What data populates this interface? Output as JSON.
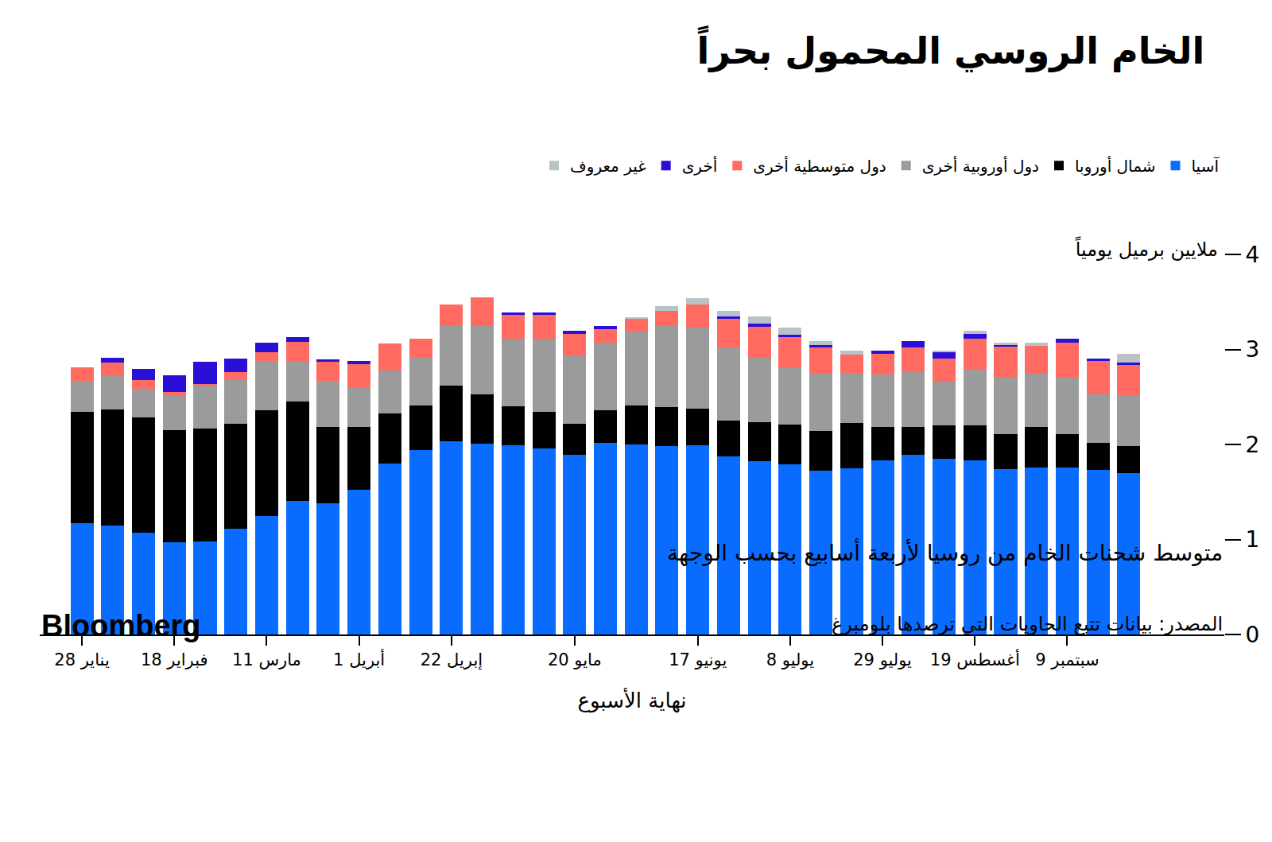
{
  "chart_data": {
    "type": "bar",
    "stacked": true,
    "title": "الخام الروسي المحمول بحراً",
    "subtitle": "متوسط شحنات الخام من روسيا لأربعة أسابيع بحسب الوجهة",
    "ylabel": "ملايين برميل يومياً",
    "xlabel": "نهاية الأسبوع",
    "source": "المصدر: بيانات تتبع الحاويات التي ترصدها بلومبرغ",
    "brand": "Bloomberg",
    "grid": false,
    "legend": "top",
    "ylim": [
      0,
      4
    ],
    "yticks": [
      0,
      1,
      2,
      3,
      4
    ],
    "categories": [
      "28 يناير",
      null,
      null,
      "18 فبراير",
      null,
      null,
      "11 مارس",
      null,
      null,
      "1 أبريل",
      null,
      null,
      "22 إبريل",
      null,
      null,
      null,
      "20 مايو",
      null,
      null,
      null,
      "17 يونيو",
      null,
      null,
      "8 يوليو",
      null,
      null,
      "29 يوليو",
      null,
      null,
      "19 أغسطس",
      null,
      null,
      "9 سبتمبر",
      null,
      null
    ],
    "series": [
      {
        "name": "آسيا",
        "color": "#0a6cff",
        "values": [
          1.17,
          1.15,
          1.075,
          0.97,
          0.98,
          1.11,
          1.25,
          1.41,
          1.38,
          1.525,
          1.8,
          1.94,
          2.03,
          2.01,
          1.99,
          1.96,
          1.89,
          2.02,
          2.0,
          1.98,
          1.99,
          1.875,
          1.825,
          1.79,
          1.72,
          1.75,
          1.83,
          1.89,
          1.85,
          1.83,
          1.74,
          1.76,
          1.76,
          1.73,
          1.7
        ]
      },
      {
        "name": "شمال أوروبا",
        "color": "#000000",
        "values": [
          1.17,
          1.22,
          1.21,
          1.18,
          1.19,
          1.11,
          1.11,
          1.04,
          0.8,
          0.66,
          0.525,
          0.47,
          0.59,
          0.515,
          0.41,
          0.38,
          0.33,
          0.34,
          0.41,
          0.41,
          0.385,
          0.375,
          0.41,
          0.42,
          0.425,
          0.48,
          0.35,
          0.29,
          0.35,
          0.375,
          0.365,
          0.425,
          0.35,
          0.29,
          0.28
        ]
      },
      {
        "name": "دول أوروبية أخرى",
        "color": "#9b9b9b",
        "values": [
          0.33,
          0.36,
          0.3,
          0.37,
          0.45,
          0.46,
          0.52,
          0.42,
          0.49,
          0.42,
          0.45,
          0.5,
          0.625,
          0.72,
          0.71,
          0.77,
          0.72,
          0.71,
          0.78,
          0.86,
          0.855,
          0.775,
          0.675,
          0.59,
          0.6,
          0.525,
          0.56,
          0.585,
          0.465,
          0.585,
          0.6,
          0.56,
          0.59,
          0.51,
          0.54
        ]
      },
      {
        "name": "دول متوسطية أخرى",
        "color": "#ff6b61",
        "values": [
          0.14,
          0.13,
          0.09,
          0.03,
          0.02,
          0.08,
          0.09,
          0.21,
          0.2,
          0.24,
          0.29,
          0.2,
          0.23,
          0.3,
          0.25,
          0.25,
          0.225,
          0.14,
          0.13,
          0.16,
          0.24,
          0.3,
          0.33,
          0.33,
          0.28,
          0.19,
          0.215,
          0.26,
          0.24,
          0.325,
          0.325,
          0.29,
          0.37,
          0.35,
          0.32
        ]
      },
      {
        "name": "أخرى",
        "color": "#2a0fd6",
        "values": [
          0,
          0.05,
          0.12,
          0.18,
          0.23,
          0.14,
          0.1,
          0.05,
          0.025,
          0.03,
          0,
          0,
          0,
          0,
          0.025,
          0.025,
          0.03,
          0.04,
          0,
          0,
          0,
          0.025,
          0.03,
          0.025,
          0.025,
          0,
          0.035,
          0.065,
          0.065,
          0.05,
          0.02,
          0,
          0.04,
          0.025,
          0.025
        ]
      },
      {
        "name": "غير معروف",
        "color": "#b9c3c6",
        "values": [
          0,
          0,
          0,
          0,
          0,
          0,
          0,
          0,
          0,
          0,
          0,
          0,
          0,
          0,
          0,
          0,
          0,
          0,
          0.02,
          0.05,
          0.07,
          0.06,
          0.075,
          0.075,
          0.04,
          0.04,
          0,
          0,
          0.015,
          0.035,
          0.02,
          0.04,
          0,
          0,
          0.085
        ]
      }
    ]
  }
}
